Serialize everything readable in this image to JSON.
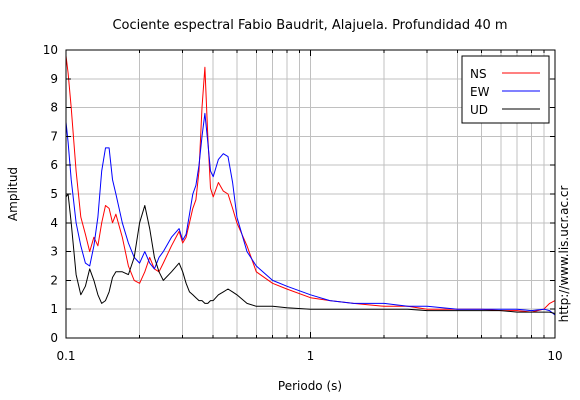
{
  "chart_data": {
    "type": "line",
    "title": "Cociente espectral Fabio Baudrit, Alajuela. Profundidad 40 m",
    "xlabel": "Periodo (s)",
    "ylabel": "Amplitud",
    "xscale": "log",
    "xlim": [
      0.1,
      10
    ],
    "ylim": [
      0,
      10
    ],
    "x_ticks": [
      0.1,
      1,
      10
    ],
    "x_tick_labels": [
      "0.1",
      "1",
      "10"
    ],
    "y_ticks": [
      0,
      1,
      2,
      3,
      4,
      5,
      6,
      7,
      8,
      9,
      10
    ],
    "y_tick_labels": [
      "0",
      "1",
      "2",
      "3",
      "4",
      "5",
      "6",
      "7",
      "8",
      "9",
      "10"
    ],
    "grid": true,
    "legend_position": "top-right",
    "side_text": "http://www.lis.ucr.ac.cr",
    "series": [
      {
        "name": "NS",
        "color": "#ff0000",
        "x": [
          0.1,
          0.102,
          0.105,
          0.11,
          0.115,
          0.12,
          0.125,
          0.13,
          0.135,
          0.14,
          0.145,
          0.15,
          0.155,
          0.16,
          0.17,
          0.18,
          0.19,
          0.2,
          0.21,
          0.22,
          0.23,
          0.24,
          0.25,
          0.27,
          0.29,
          0.3,
          0.31,
          0.32,
          0.33,
          0.34,
          0.35,
          0.36,
          0.37,
          0.38,
          0.39,
          0.4,
          0.42,
          0.44,
          0.46,
          0.48,
          0.5,
          0.55,
          0.6,
          0.7,
          0.8,
          1.0,
          1.2,
          1.5,
          2.0,
          2.5,
          3.0,
          4.0,
          5.0,
          6.0,
          7.0,
          8.0,
          9.0,
          9.5,
          10.0
        ],
        "y": [
          9.8,
          9.2,
          8.0,
          5.8,
          4.2,
          3.6,
          3.0,
          3.5,
          3.2,
          4.0,
          4.6,
          4.5,
          4.0,
          4.3,
          3.5,
          2.5,
          2.0,
          1.9,
          2.3,
          2.8,
          2.4,
          2.3,
          2.6,
          3.2,
          3.7,
          3.3,
          3.5,
          4.0,
          4.5,
          4.8,
          5.8,
          8.0,
          9.4,
          7.0,
          5.2,
          4.9,
          5.4,
          5.1,
          5.0,
          4.5,
          4.0,
          3.2,
          2.3,
          1.9,
          1.7,
          1.4,
          1.3,
          1.2,
          1.1,
          1.1,
          1.0,
          1.0,
          1.0,
          0.95,
          0.95,
          0.9,
          1.0,
          1.2,
          1.3
        ]
      },
      {
        "name": "EW",
        "color": "#0000ff",
        "x": [
          0.1,
          0.102,
          0.105,
          0.11,
          0.115,
          0.12,
          0.125,
          0.13,
          0.135,
          0.14,
          0.145,
          0.15,
          0.155,
          0.16,
          0.17,
          0.18,
          0.19,
          0.2,
          0.21,
          0.22,
          0.23,
          0.24,
          0.25,
          0.27,
          0.29,
          0.3,
          0.31,
          0.32,
          0.33,
          0.34,
          0.35,
          0.36,
          0.37,
          0.38,
          0.39,
          0.4,
          0.42,
          0.44,
          0.46,
          0.48,
          0.5,
          0.55,
          0.6,
          0.7,
          0.8,
          1.0,
          1.2,
          1.5,
          2.0,
          2.5,
          3.0,
          4.0,
          5.0,
          6.0,
          7.0,
          8.0,
          9.0,
          9.5,
          10.0
        ],
        "y": [
          7.5,
          6.8,
          5.5,
          4.0,
          3.2,
          2.6,
          2.5,
          3.2,
          4.2,
          5.8,
          6.6,
          6.6,
          5.5,
          5.0,
          4.0,
          3.3,
          2.8,
          2.6,
          3.0,
          2.6,
          2.4,
          2.8,
          3.0,
          3.5,
          3.8,
          3.4,
          3.6,
          4.3,
          5.0,
          5.3,
          6.0,
          7.0,
          7.8,
          6.8,
          5.8,
          5.6,
          6.2,
          6.4,
          6.3,
          5.4,
          4.2,
          3.0,
          2.5,
          2.0,
          1.8,
          1.5,
          1.3,
          1.2,
          1.2,
          1.1,
          1.1,
          1.0,
          1.0,
          1.0,
          1.0,
          0.95,
          1.0,
          0.95,
          0.8
        ]
      },
      {
        "name": "UD",
        "color": "#000000",
        "x": [
          0.1,
          0.102,
          0.105,
          0.11,
          0.115,
          0.12,
          0.125,
          0.13,
          0.135,
          0.14,
          0.145,
          0.15,
          0.155,
          0.16,
          0.17,
          0.18,
          0.19,
          0.2,
          0.21,
          0.22,
          0.23,
          0.24,
          0.25,
          0.27,
          0.29,
          0.3,
          0.31,
          0.32,
          0.33,
          0.34,
          0.35,
          0.36,
          0.37,
          0.38,
          0.39,
          0.4,
          0.42,
          0.44,
          0.46,
          0.48,
          0.5,
          0.55,
          0.6,
          0.7,
          0.8,
          1.0,
          1.2,
          1.5,
          2.0,
          2.5,
          3.0,
          4.0,
          5.0,
          6.0,
          7.0,
          8.0,
          9.0,
          9.5,
          10.0
        ],
        "y": [
          4.9,
          5.0,
          4.0,
          2.2,
          1.5,
          1.8,
          2.4,
          2.0,
          1.5,
          1.2,
          1.3,
          1.6,
          2.1,
          2.3,
          2.3,
          2.2,
          2.8,
          4.0,
          4.6,
          3.8,
          2.8,
          2.3,
          2.0,
          2.3,
          2.6,
          2.3,
          1.9,
          1.6,
          1.5,
          1.4,
          1.3,
          1.3,
          1.2,
          1.2,
          1.3,
          1.3,
          1.5,
          1.6,
          1.7,
          1.6,
          1.5,
          1.2,
          1.1,
          1.1,
          1.05,
          1.0,
          1.0,
          1.0,
          1.0,
          1.0,
          0.95,
          0.95,
          0.95,
          0.95,
          0.9,
          0.9,
          0.9,
          0.9,
          0.85
        ]
      }
    ]
  }
}
